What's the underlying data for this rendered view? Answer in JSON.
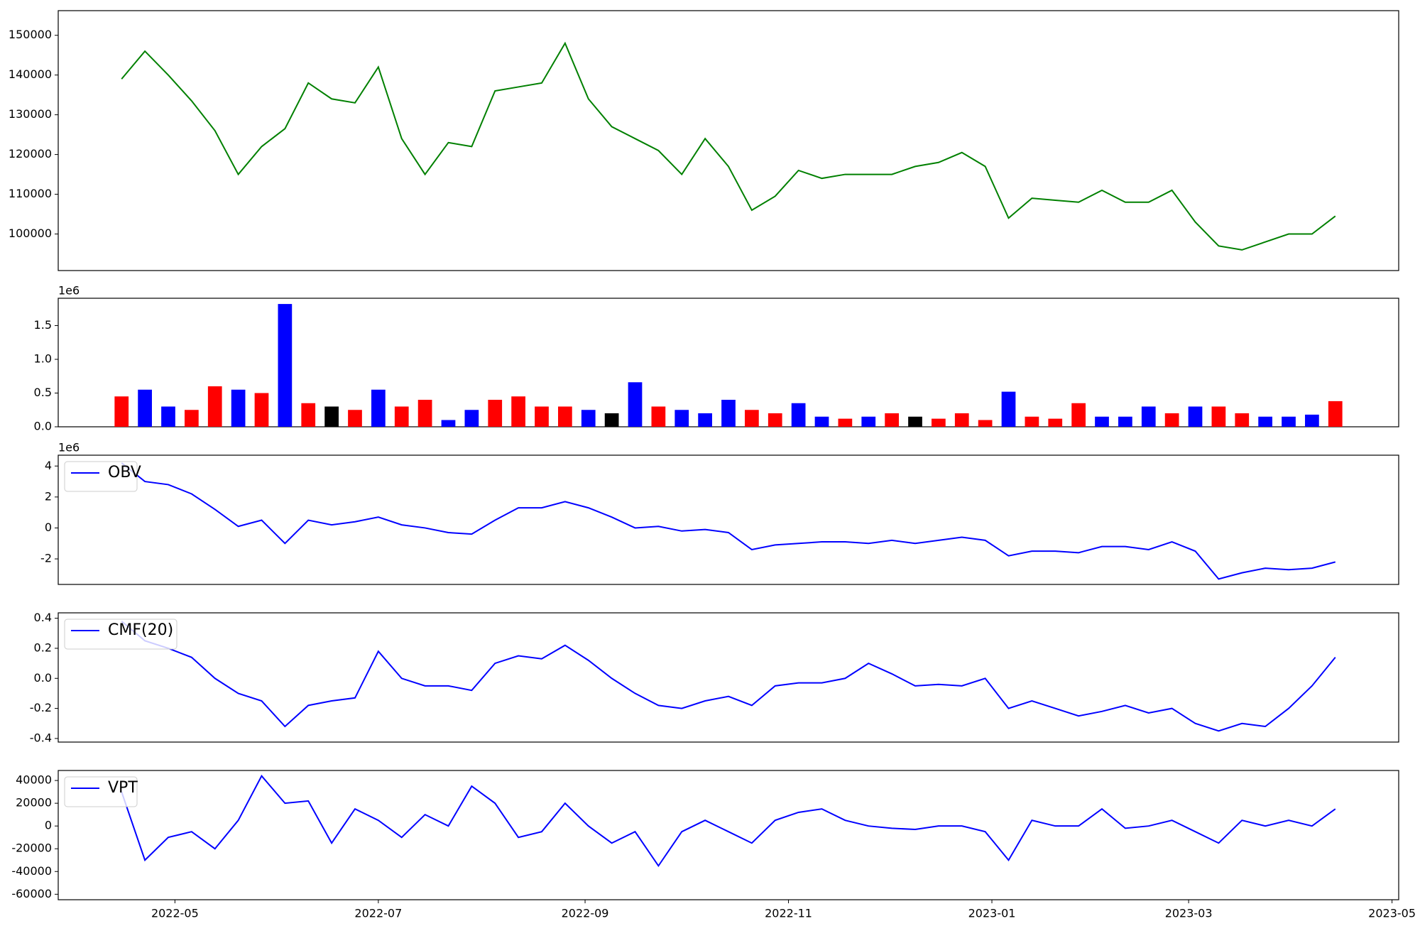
{
  "chart_data": [
    {
      "type": "line",
      "x": [
        "2022-04-15",
        "2022-04-22",
        "2022-04-29",
        "2022-05-06",
        "2022-05-13",
        "2022-05-20",
        "2022-05-27",
        "2022-06-03",
        "2022-06-10",
        "2022-06-17",
        "2022-06-24",
        "2022-07-01",
        "2022-07-08",
        "2022-07-15",
        "2022-07-22",
        "2022-07-29",
        "2022-08-05",
        "2022-08-12",
        "2022-08-19",
        "2022-08-26",
        "2022-09-02",
        "2022-09-09",
        "2022-09-16",
        "2022-09-23",
        "2022-09-30",
        "2022-10-07",
        "2022-10-14",
        "2022-10-21",
        "2022-10-28",
        "2022-11-04",
        "2022-11-11",
        "2022-11-18",
        "2022-11-25",
        "2022-12-02",
        "2022-12-09",
        "2022-12-16",
        "2022-12-23",
        "2022-12-30",
        "2023-01-06",
        "2023-01-13",
        "2023-01-20",
        "2023-01-27",
        "2023-02-03",
        "2023-02-10",
        "2023-02-17",
        "2023-02-24",
        "2023-03-03",
        "2023-03-10",
        "2023-03-17",
        "2023-03-24",
        "2023-03-31",
        "2023-04-07",
        "2023-04-14"
      ],
      "xlim": [
        "2022-03-27",
        "2023-05-03"
      ],
      "series": [
        {
          "color": "#008000",
          "values": [
            139000,
            146000,
            140000,
            133500,
            126000,
            115000,
            122000,
            126500,
            138000,
            134000,
            133000,
            142000,
            124000,
            115000,
            123000,
            122000,
            136000,
            137000,
            138000,
            148000,
            134000,
            127000,
            124000,
            121000,
            115000,
            124000,
            117000,
            106000,
            109500,
            116000,
            114000,
            115000,
            115000,
            115000,
            117000,
            118000,
            120500,
            117000,
            104000,
            109000,
            108500,
            108000,
            111000,
            108000,
            108000,
            111000,
            103000,
            97000,
            96000,
            98000,
            100000,
            100000,
            104500
          ]
        }
      ],
      "ylim": [
        90800,
        156200
      ],
      "yticks": [
        100000,
        110000,
        120000,
        130000,
        140000,
        150000
      ]
    },
    {
      "type": "bar",
      "offset_label": "1e6",
      "values": [
        0.45,
        0.55,
        0.3,
        0.25,
        0.6,
        0.55,
        0.5,
        1.82,
        0.35,
        0.3,
        0.25,
        0.55,
        0.3,
        0.4,
        0.1,
        0.25,
        0.4,
        0.45,
        0.3,
        0.3,
        0.25,
        0.2,
        0.66,
        0.3,
        0.25,
        0.2,
        0.4,
        0.25,
        0.2,
        0.35,
        0.15,
        0.12,
        0.15,
        0.2,
        0.15,
        0.12,
        0.2,
        0.1,
        0.52,
        0.15,
        0.12,
        0.35,
        0.15,
        0.15,
        0.3,
        0.2,
        0.3,
        0.3,
        0.2,
        0.15,
        0.15,
        0.18,
        0.38
      ],
      "colors": [
        "#ff0000",
        "#0000ff",
        "#0000ff",
        "#ff0000",
        "#ff0000",
        "#0000ff",
        "#ff0000",
        "#0000ff",
        "#ff0000",
        "#000000",
        "#ff0000",
        "#0000ff",
        "#ff0000",
        "#ff0000",
        "#0000ff",
        "#0000ff",
        "#ff0000",
        "#ff0000",
        "#ff0000",
        "#ff0000",
        "#0000ff",
        "#000000",
        "#0000ff",
        "#ff0000",
        "#0000ff",
        "#0000ff",
        "#0000ff",
        "#ff0000",
        "#ff0000",
        "#0000ff",
        "#0000ff",
        "#ff0000",
        "#0000ff",
        "#ff0000",
        "#000000",
        "#ff0000",
        "#ff0000",
        "#ff0000",
        "#0000ff",
        "#ff0000",
        "#ff0000",
        "#ff0000",
        "#0000ff",
        "#0000ff",
        "#0000ff",
        "#ff0000",
        "#0000ff",
        "#ff0000",
        "#ff0000",
        "#0000ff",
        "#0000ff",
        "#0000ff",
        "#ff0000"
      ],
      "ylim": [
        0,
        1.905
      ],
      "yticks": [
        {
          "value": 0,
          "label": "0.0"
        },
        0.5,
        {
          "value": 1,
          "label": "1.0"
        },
        1.5
      ]
    },
    {
      "type": "line",
      "offset_label": "1e6",
      "legend": "upper left",
      "series": [
        {
          "name": "OBV",
          "color": "#0000ff",
          "values": [
            4.2,
            3.0,
            2.8,
            2.2,
            1.2,
            0.1,
            0.5,
            -1.0,
            0.5,
            0.2,
            0.4,
            0.7,
            0.2,
            0.0,
            -0.3,
            -0.4,
            0.5,
            1.3,
            1.3,
            1.7,
            1.3,
            0.7,
            0.0,
            0.1,
            -0.2,
            -0.1,
            -0.3,
            -1.4,
            -1.1,
            -1.0,
            -0.9,
            -0.9,
            -1.0,
            -0.8,
            -1.0,
            -0.8,
            -0.6,
            -0.8,
            -1.8,
            -1.5,
            -1.5,
            -1.6,
            -1.2,
            -1.2,
            -1.4,
            -0.9,
            -1.5,
            -3.3,
            -2.9,
            -2.6,
            -2.7,
            -2.6,
            -2.2
          ]
        }
      ],
      "ylim": [
        -3.65,
        4.7
      ],
      "yticks": [
        -2,
        0,
        2,
        4
      ]
    },
    {
      "type": "line",
      "legend": "upper left",
      "series": [
        {
          "name": "CMF(20)",
          "color": "#0000ff",
          "values": [
            0.38,
            0.25,
            0.2,
            0.14,
            0.0,
            -0.1,
            -0.15,
            -0.32,
            -0.18,
            -0.15,
            -0.13,
            0.18,
            0.0,
            -0.05,
            -0.05,
            -0.08,
            0.1,
            0.15,
            0.13,
            0.22,
            0.12,
            0.0,
            -0.1,
            -0.18,
            -0.2,
            -0.15,
            -0.12,
            -0.18,
            -0.05,
            -0.03,
            -0.03,
            0.0,
            0.1,
            0.03,
            -0.05,
            -0.04,
            -0.05,
            0.0,
            -0.2,
            -0.15,
            -0.2,
            -0.25,
            -0.22,
            -0.18,
            -0.23,
            -0.2,
            -0.3,
            -0.35,
            -0.3,
            -0.32,
            -0.2,
            -0.05,
            0.14
          ]
        }
      ],
      "ylim": [
        -0.424,
        0.436
      ],
      "yticks": [
        -0.4,
        -0.2,
        {
          "value": 0,
          "label": "0.0"
        },
        0.2,
        0.4
      ]
    },
    {
      "type": "line",
      "legend": "upper left",
      "series": [
        {
          "name": "VPT",
          "color": "#0000ff",
          "values": [
            30000,
            -30000,
            -10000,
            -5000,
            -20000,
            5000,
            44000,
            20000,
            22000,
            -15000,
            15000,
            5000,
            -10000,
            10000,
            0,
            35000,
            20000,
            -10000,
            -5000,
            20000,
            0,
            -15000,
            -5000,
            -35000,
            -5000,
            5000,
            -5000,
            -15000,
            5000,
            12000,
            15000,
            5000,
            0,
            -2000,
            -3000,
            0,
            0,
            -5000,
            -30000,
            5000,
            0,
            0,
            15000,
            -2000,
            0,
            5000,
            -5000,
            -15000,
            5000,
            0,
            5000,
            0,
            15000
          ]
        }
      ],
      "ylim": [
        -64800,
        48800
      ],
      "yticks": [
        -60000,
        -40000,
        -20000,
        0,
        20000,
        40000
      ],
      "xticks": [
        "2022-05",
        "2022-07",
        "2022-09",
        "2022-11",
        "2023-01",
        "2023-03",
        "2023-05"
      ]
    }
  ]
}
